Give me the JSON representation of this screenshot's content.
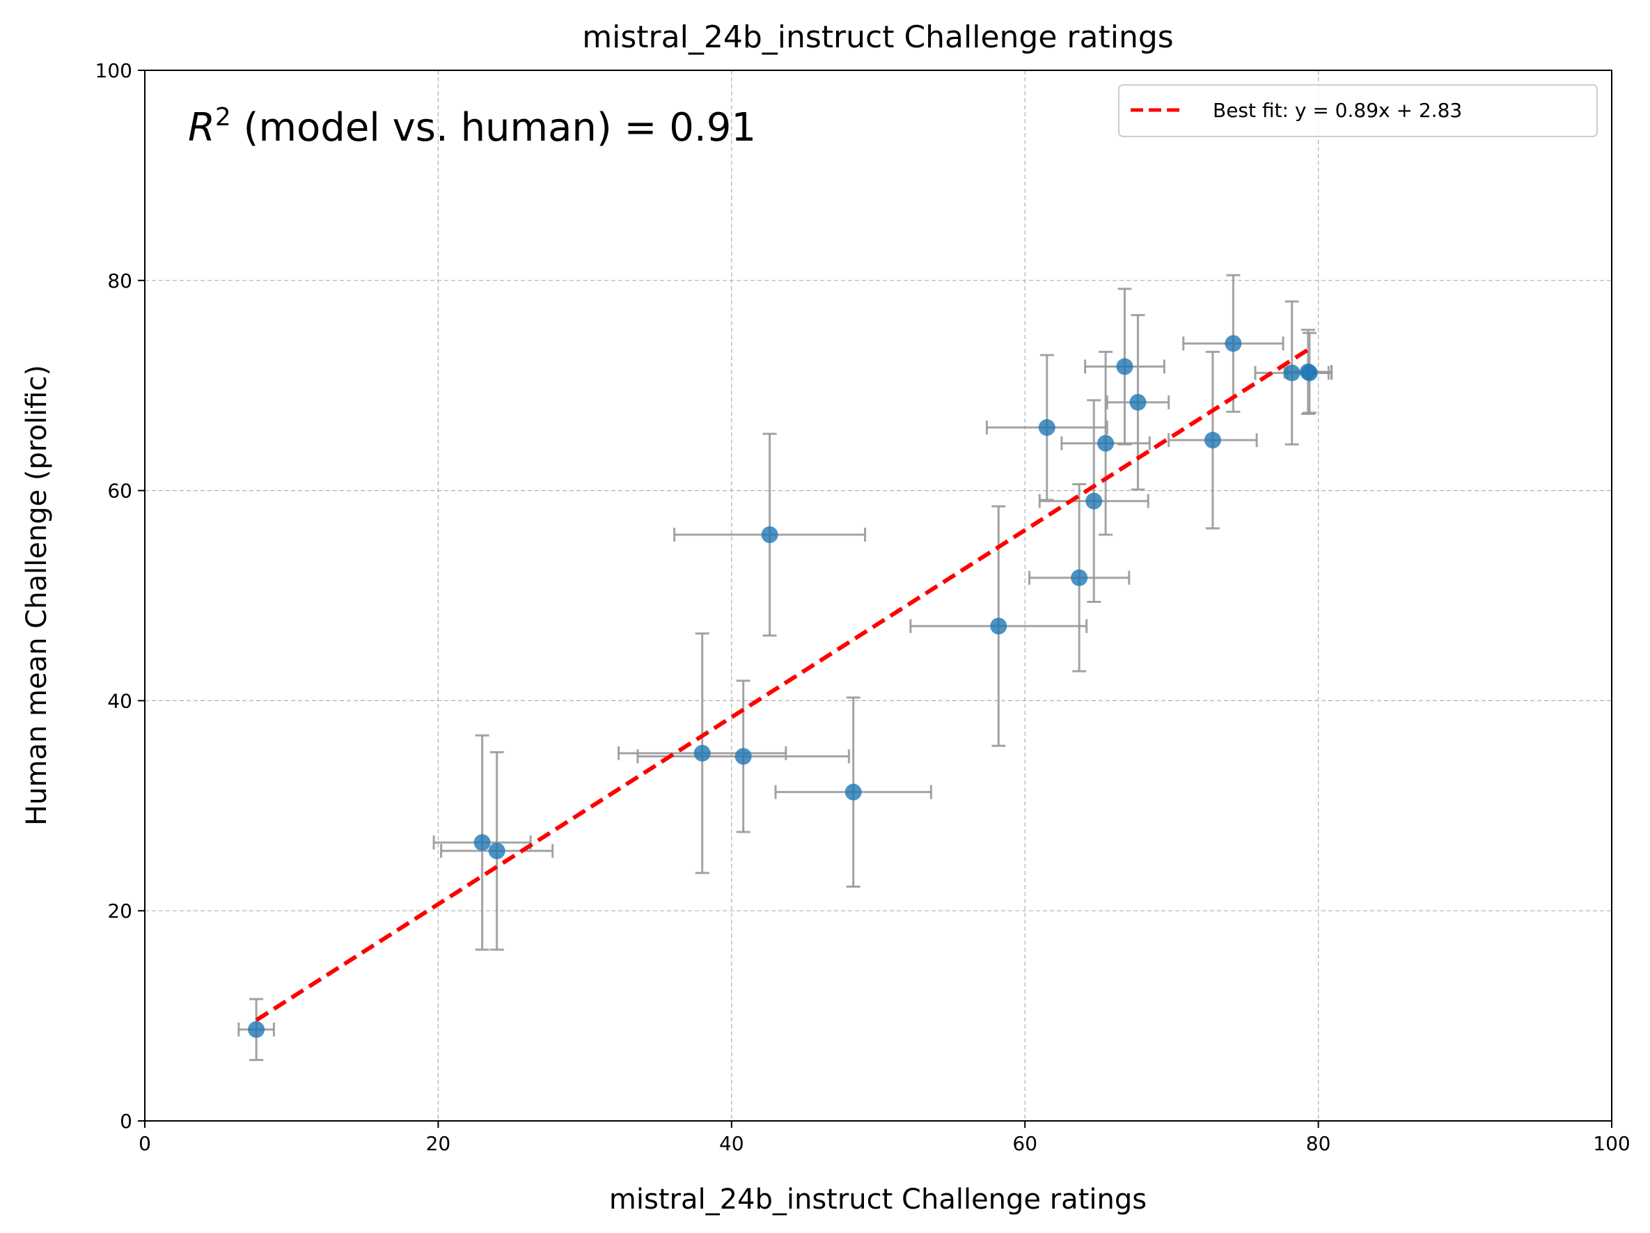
{
  "chart_data": {
    "type": "scatter",
    "title": "mistral_24b_instruct Challenge ratings",
    "xlabel": "mistral_24b_instruct Challenge ratings",
    "ylabel": "Human mean Challenge (prolific)",
    "xlim": [
      0,
      100
    ],
    "ylim": [
      0,
      100
    ],
    "xticks": [
      "0",
      "20",
      "40",
      "60",
      "80",
      "100"
    ],
    "yticks": [
      "0",
      "20",
      "40",
      "60",
      "80",
      "100"
    ],
    "grid": true,
    "annotation": {
      "symbol": "R",
      "exponent": "2",
      "text": " (model vs. human) = 0.91"
    },
    "legend": {
      "position": "top-right",
      "label": "Best fit: y = 0.89x + 2.83"
    },
    "fit": {
      "slope": 0.89,
      "intercept": 2.83,
      "x_range": [
        7.6,
        79.4
      ],
      "color": "#ff0000"
    },
    "point_color": "#1f77b4",
    "errorbar_color": "#999999",
    "points": [
      {
        "x": 7.6,
        "y": 8.7,
        "xerr": 1.2,
        "yerr": 2.9
      },
      {
        "x": 23.0,
        "y": 26.5,
        "xerr": 3.3,
        "yerr": 10.2
      },
      {
        "x": 24.0,
        "y": 25.7,
        "xerr": 3.8,
        "yerr": 9.4
      },
      {
        "x": 38.0,
        "y": 35.0,
        "xerr": 5.7,
        "yerr": 11.4
      },
      {
        "x": 40.8,
        "y": 34.7,
        "xerr": 7.2,
        "yerr": 7.2
      },
      {
        "x": 42.6,
        "y": 55.8,
        "xerr": 6.5,
        "yerr": 9.6
      },
      {
        "x": 48.3,
        "y": 31.3,
        "xerr": 5.3,
        "yerr": 9.0
      },
      {
        "x": 58.2,
        "y": 47.1,
        "xerr": 6.0,
        "yerr": 11.4
      },
      {
        "x": 61.5,
        "y": 66.0,
        "xerr": 4.1,
        "yerr": 6.9
      },
      {
        "x": 63.7,
        "y": 51.7,
        "xerr": 3.4,
        "yerr": 8.9
      },
      {
        "x": 64.7,
        "y": 59.0,
        "xerr": 3.7,
        "yerr": 9.6
      },
      {
        "x": 65.5,
        "y": 64.5,
        "xerr": 3.0,
        "yerr": 8.7
      },
      {
        "x": 66.8,
        "y": 71.8,
        "xerr": 2.7,
        "yerr": 7.4
      },
      {
        "x": 67.7,
        "y": 68.4,
        "xerr": 2.1,
        "yerr": 8.3
      },
      {
        "x": 72.8,
        "y": 64.8,
        "xerr": 3.0,
        "yerr": 8.4
      },
      {
        "x": 74.2,
        "y": 74.0,
        "xerr": 3.4,
        "yerr": 6.5
      },
      {
        "x": 78.2,
        "y": 71.2,
        "xerr": 2.5,
        "yerr": 6.8
      },
      {
        "x": 79.3,
        "y": 71.3,
        "xerr": 1.6,
        "yerr": 4.0
      },
      {
        "x": 79.4,
        "y": 71.2,
        "xerr": 1.5,
        "yerr": 3.8
      }
    ]
  }
}
